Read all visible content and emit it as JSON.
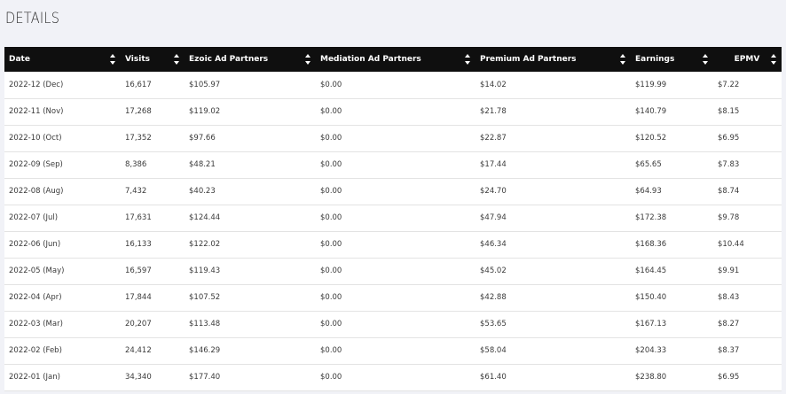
{
  "page": {
    "title": "DETAILS"
  },
  "table": {
    "columns": [
      "Date",
      "Visits",
      "Ezoic Ad Partners",
      "Mediation Ad Partners",
      "Premium Ad Partners",
      "Earnings",
      "EPMV"
    ],
    "rows": [
      [
        "2022-12 (Dec)",
        "16,617",
        "$105.97",
        "$0.00",
        "$14.02",
        "$119.99",
        "$7.22"
      ],
      [
        "2022-11 (Nov)",
        "17,268",
        "$119.02",
        "$0.00",
        "$21.78",
        "$140.79",
        "$8.15"
      ],
      [
        "2022-10 (Oct)",
        "17,352",
        "$97.66",
        "$0.00",
        "$22.87",
        "$120.52",
        "$6.95"
      ],
      [
        "2022-09 (Sep)",
        "8,386",
        "$48.21",
        "$0.00",
        "$17.44",
        "$65.65",
        "$7.83"
      ],
      [
        "2022-08 (Aug)",
        "7,432",
        "$40.23",
        "$0.00",
        "$24.70",
        "$64.93",
        "$8.74"
      ],
      [
        "2022-07 (Jul)",
        "17,631",
        "$124.44",
        "$0.00",
        "$47.94",
        "$172.38",
        "$9.78"
      ],
      [
        "2022-06 (Jun)",
        "16,133",
        "$122.02",
        "$0.00",
        "$46.34",
        "$168.36",
        "$10.44"
      ],
      [
        "2022-05 (May)",
        "16,597",
        "$119.43",
        "$0.00",
        "$45.02",
        "$164.45",
        "$9.91"
      ],
      [
        "2022-04 (Apr)",
        "17,844",
        "$107.52",
        "$0.00",
        "$42.88",
        "$150.40",
        "$8.43"
      ],
      [
        "2022-03 (Mar)",
        "20,207",
        "$113.48",
        "$0.00",
        "$53.65",
        "$167.13",
        "$8.27"
      ],
      [
        "2022-02 (Feb)",
        "24,412",
        "$146.29",
        "$0.00",
        "$58.04",
        "$204.33",
        "$8.37"
      ],
      [
        "2022-01 (Jan)",
        "34,340",
        "$177.40",
        "$0.00",
        "$61.40",
        "$238.80",
        "$6.95"
      ]
    ]
  },
  "icons": {
    "sort": "sort-icon"
  },
  "colors": {
    "header_bg": "#0f0f0f",
    "page_bg": "#f1f2f7"
  }
}
